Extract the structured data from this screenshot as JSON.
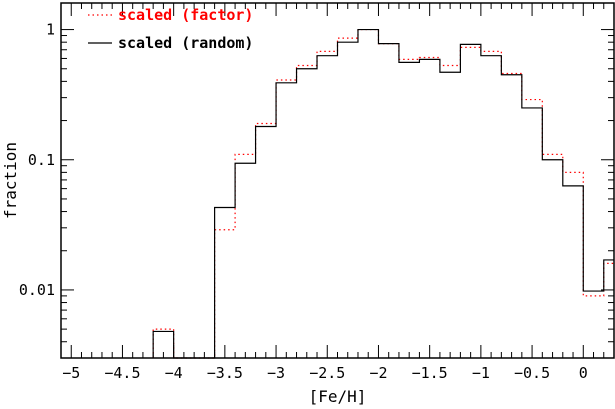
{
  "chart_data": {
    "type": "line",
    "step": true,
    "xlabel": "[Fe/H]",
    "ylabel": "fraction",
    "xlim": [
      -5.1,
      0.3
    ],
    "ylim": [
      0.003,
      1.6
    ],
    "yscale": "log",
    "xticks": [
      -5,
      -4.5,
      -4,
      -3.5,
      -3,
      -2.5,
      -2,
      -1.5,
      -1,
      -0.5,
      0
    ],
    "xtick_labels": [
      "−5",
      "−4.5",
      "−4",
      "−3.5",
      "−3",
      "−2.5",
      "−2",
      "−1.5",
      "−1",
      "−0.5",
      "0"
    ],
    "yticks": [
      0.01,
      0.1,
      1
    ],
    "ytick_labels": [
      "0.01",
      "0.1",
      "1"
    ],
    "grid": false,
    "legend_position": "top-left",
    "bin_edges": [
      -4.2,
      -4.0,
      -3.8,
      -3.6,
      -3.4,
      -3.2,
      -3.0,
      -2.8,
      -2.6,
      -2.4,
      -2.2,
      -2.0,
      -1.8,
      -1.6,
      -1.4,
      -1.2,
      -1.0,
      -0.8,
      -0.6,
      -0.4,
      -0.2,
      0.0,
      0.2,
      0.4
    ],
    "series": [
      {
        "name": "scaled (factor)",
        "color": "#ff0000",
        "style": "dotted",
        "values": [
          0.005,
          0.003,
          0.003,
          0.029,
          0.11,
          0.19,
          0.41,
          0.53,
          0.68,
          0.86,
          1.0,
          0.78,
          0.59,
          0.61,
          0.53,
          0.73,
          0.68,
          0.46,
          0.29,
          0.11,
          0.08,
          0.009,
          0.016
        ]
      },
      {
        "name": "scaled (random)",
        "color": "#000000",
        "style": "solid",
        "values": [
          0.0048,
          0.003,
          0.003,
          0.043,
          0.094,
          0.18,
          0.39,
          0.5,
          0.63,
          0.8,
          1.0,
          0.78,
          0.56,
          0.59,
          0.47,
          0.77,
          0.63,
          0.45,
          0.25,
          0.1,
          0.063,
          0.0098,
          0.017
        ]
      }
    ]
  }
}
